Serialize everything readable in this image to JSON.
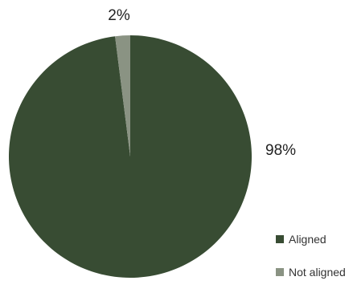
{
  "chart_data": {
    "type": "pie",
    "categories": [
      "Aligned",
      "Not aligned"
    ],
    "values": [
      98,
      2
    ],
    "data_labels": [
      "98%",
      "2%"
    ],
    "colors": [
      "#384c33",
      "#8a9383"
    ],
    "start": "12 o'clock",
    "direction": "clockwise",
    "legend_position": "bottom-right"
  }
}
